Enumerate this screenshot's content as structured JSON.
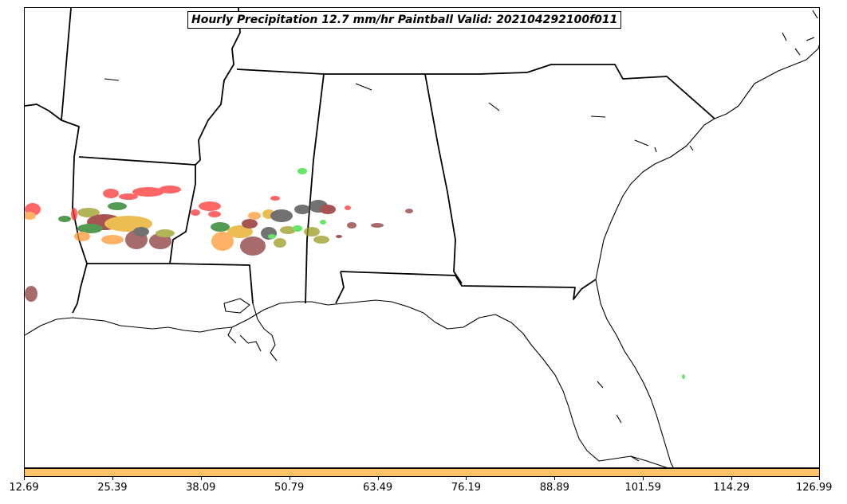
{
  "title": "Hourly Precipitation 12.7 mm/hr Paintball Valid: 202104292100f011",
  "colorbar": {
    "fill_color": "#ffc266",
    "tick_labels": [
      "12.69",
      "25.39",
      "38.09",
      "50.79",
      "63.49",
      "76.19",
      "88.89",
      "101.59",
      "114.29",
      "126.99"
    ]
  },
  "colors": {
    "coastline": "#000000",
    "member_red": "#ff3333",
    "member_darkred": "#8b1a1a",
    "member_green": "#1a7a1a",
    "member_lime": "#33dd33",
    "member_orange": "#ff9933",
    "member_gold": "#e6a817",
    "member_olive": "#9a9a20",
    "member_gray": "#444444",
    "member_brown": "#8b3a3a"
  }
}
